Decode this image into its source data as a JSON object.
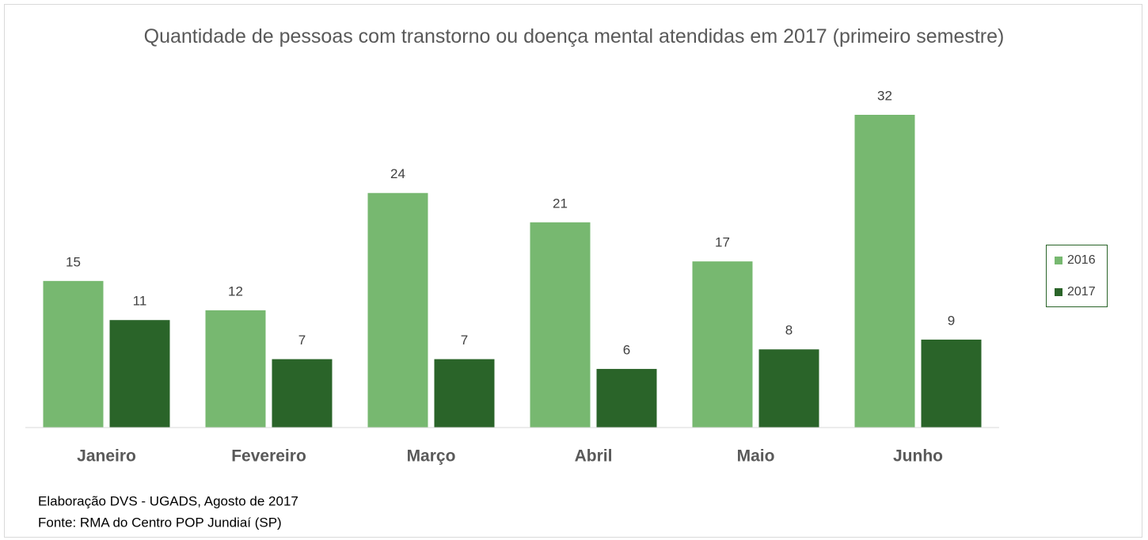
{
  "chart_data": {
    "type": "bar",
    "title": "Quantidade de pessoas com transtorno ou doença mental atendidas em 2017 (primeiro semestre)",
    "categories": [
      "Janeiro",
      "Fevereiro",
      "Março",
      "Abril",
      "Maio",
      "Junho"
    ],
    "series": [
      {
        "name": "2016",
        "color": "#77b870",
        "values": [
          15,
          12,
          24,
          21,
          17,
          32
        ]
      },
      {
        "name": "2017",
        "color": "#2a6429",
        "values": [
          11,
          7,
          7,
          6,
          8,
          9
        ]
      }
    ],
    "legend": "right",
    "notes": [
      "Elaboração DVS - UGADS, Agosto de 2017",
      "Fonte: RMA do Centro POP Jundiaí (SP)"
    ]
  }
}
